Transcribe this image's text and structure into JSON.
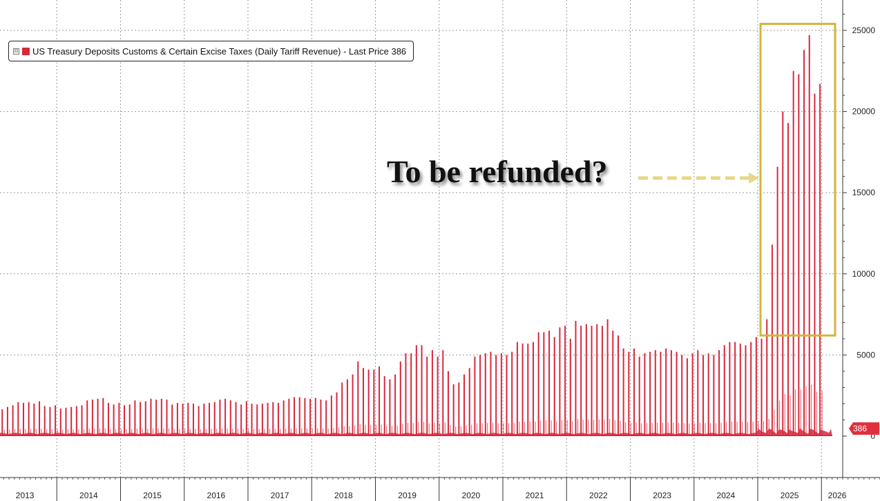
{
  "chart_data": {
    "type": "bar",
    "series": [
      {
        "name": "US Treasury Deposits Customs & Certain Excise Taxes (Daily Tariff Revenue)",
        "color": "#d7283c",
        "description_of_values": "monthly peak daily deposits ($M)",
        "monthly_peaks": {
          "2013": [
            1750,
            1700,
            1650,
            1800,
            1900,
            2100,
            2050,
            2100,
            2000,
            2150,
            1850,
            1800
          ],
          "2014": [
            1900,
            1700,
            1750,
            1800,
            1850,
            1900,
            2200,
            2250,
            2300,
            2350,
            2050,
            1950
          ],
          "2015": [
            2050,
            1900,
            1950,
            2200,
            2100,
            2150,
            2300,
            2250,
            2300,
            2250,
            1950,
            2050
          ],
          "2016": [
            2000,
            2050,
            2000,
            1850,
            2000,
            2050,
            2100,
            2250,
            2300,
            2200,
            2100,
            1950
          ],
          "2017": [
            2150,
            2000,
            1950,
            2000,
            2050,
            2100,
            2050,
            2200,
            2300,
            2400,
            2400,
            2350
          ],
          "2018": [
            2300,
            2350,
            2250,
            2200,
            2500,
            2700,
            3300,
            3500,
            3800,
            4600,
            4200,
            4100
          ],
          "2019": [
            4100,
            4300,
            3700,
            3500,
            3800,
            4600,
            5100,
            5100,
            5600,
            5600,
            4900,
            5300
          ],
          "2020": [
            4900,
            5300,
            4000,
            3200,
            3300,
            3800,
            4200,
            4900,
            5000,
            5100,
            5200,
            5000
          ],
          "2021": [
            5100,
            5000,
            5200,
            5800,
            5700,
            5700,
            5800,
            6400,
            6400,
            6500,
            6100,
            6700
          ],
          "2022": [
            6800,
            6000,
            7100,
            6800,
            6900,
            6800,
            6900,
            6800,
            7200,
            6500,
            6200,
            5400
          ],
          "2023": [
            5200,
            5400,
            4900,
            5100,
            5200,
            5300,
            5200,
            5400,
            5300,
            5200,
            5000,
            4800
          ],
          "2024": [
            5100,
            5300,
            5000,
            5100,
            5000,
            5300,
            5600,
            5800,
            5800,
            5700,
            5600,
            5800
          ],
          "2025": [
            6100,
            6000,
            7200,
            11800,
            16600,
            20000,
            19300,
            22500,
            22300,
            23800,
            24700,
            21100
          ],
          "2026": [
            21700
          ]
        }
      }
    ],
    "legend_label": "US Treasury Deposits Customs & Certain Excise Taxes (Daily Tariff Revenue) - Last Price 386",
    "last_price": "386",
    "x_labels": [
      "2013",
      "2014",
      "2015",
      "2016",
      "2017",
      "2018",
      "2019",
      "2020",
      "2021",
      "2022",
      "2023",
      "2024",
      "2025",
      "2026"
    ],
    "y_ticks": [
      "0",
      "5000",
      "10000",
      "15000",
      "20000",
      "25000"
    ],
    "ylim": [
      -2500,
      26800
    ],
    "grid": true,
    "legend_position": "top-left",
    "axis_position": "right",
    "annotation_text": "To be refunded?",
    "highlight_box": {
      "from": "Jan 2025",
      "to": "Jan 2026",
      "y_from": 6200,
      "y_to": 25400,
      "color": "#d4b43a"
    },
    "colors": {
      "series": "#d7283c",
      "highlight": "#d4b43a",
      "arrow": "#e7d787",
      "grid": "#9a9a9a"
    }
  }
}
